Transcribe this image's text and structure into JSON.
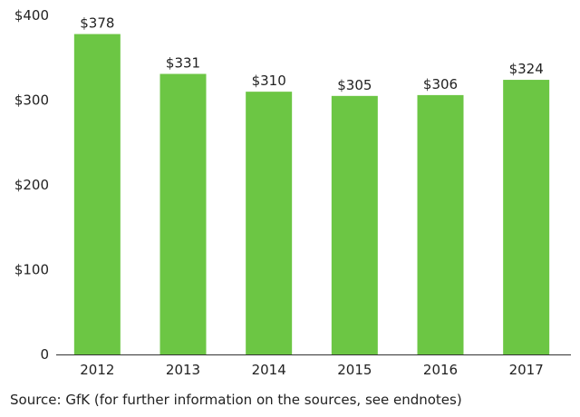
{
  "chart_data": {
    "type": "bar",
    "title": "",
    "xlabel": "",
    "ylabel": "",
    "categories": [
      "2012",
      "2013",
      "2014",
      "2015",
      "2016",
      "2017"
    ],
    "values": [
      378,
      331,
      310,
      305,
      306,
      324
    ],
    "data_labels": [
      "$378",
      "$331",
      "$310",
      "$305",
      "$306",
      "$324"
    ],
    "ylim": [
      0,
      400
    ],
    "yticks": [
      0,
      100,
      200,
      300,
      400
    ],
    "ytick_labels": [
      "0",
      "$100",
      "$200",
      "$300",
      "$400"
    ],
    "grid": false,
    "legend": "none",
    "bar_color": "#6cc644",
    "axis_color": "#333333"
  },
  "source_note": "Source: GfK (for further information on the sources, see endnotes)"
}
